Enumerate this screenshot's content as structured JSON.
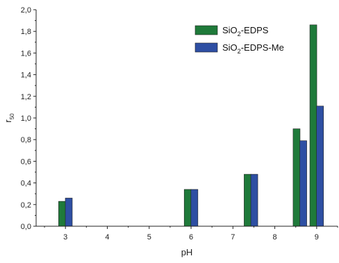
{
  "chart_data": {
    "type": "bar",
    "x_axis": {
      "label": "pH",
      "range": [
        2.3,
        9.5
      ],
      "ticks": [
        3,
        4,
        5,
        6,
        7,
        8,
        9
      ],
      "tick_labels": [
        "3",
        "4",
        "5",
        "6",
        "7",
        "8",
        "9"
      ]
    },
    "y_axis": {
      "label_main": "r",
      "label_sub": "50",
      "range": [
        0,
        2.0
      ],
      "ticks": [
        0,
        0.2,
        0.4,
        0.6,
        0.8,
        1.0,
        1.2,
        1.4,
        1.6,
        1.8,
        2.0
      ],
      "tick_labels": [
        "0,0",
        "0,2",
        "0,4",
        "0,6",
        "0,8",
        "1,0",
        "1,2",
        "1,4",
        "1,6",
        "1,8",
        "2,0"
      ]
    },
    "grid": false,
    "legend_position": "top-right",
    "series": [
      {
        "name_parts": [
          "SiO",
          "2",
          "-EDPS"
        ],
        "color": "#1f7a3a",
        "points": [
          {
            "x": 2.92,
            "y": 0.23
          },
          {
            "x": 5.92,
            "y": 0.34
          },
          {
            "x": 7.35,
            "y": 0.48
          },
          {
            "x": 8.52,
            "y": 0.9
          },
          {
            "x": 8.92,
            "y": 1.86
          }
        ]
      },
      {
        "name_parts": [
          "SiO",
          "2",
          "-EDPS-Me"
        ],
        "color": "#2e4fa3",
        "points": [
          {
            "x": 3.08,
            "y": 0.26
          },
          {
            "x": 6.08,
            "y": 0.34
          },
          {
            "x": 7.51,
            "y": 0.48
          },
          {
            "x": 8.68,
            "y": 0.79
          },
          {
            "x": 9.08,
            "y": 1.11
          }
        ]
      }
    ]
  }
}
